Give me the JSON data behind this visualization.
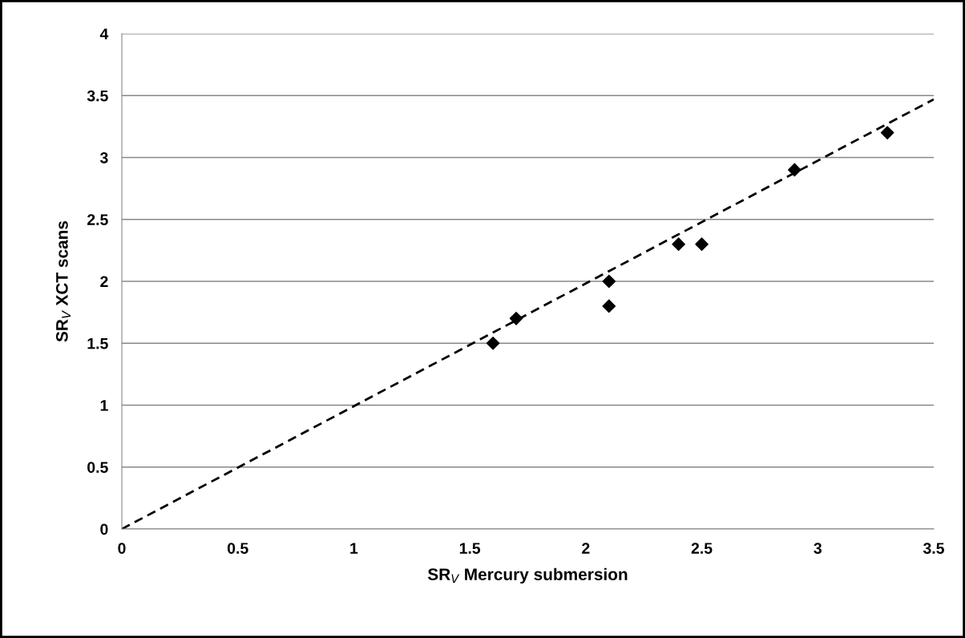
{
  "chart_data": {
    "type": "scatter",
    "xlabel": "SR$_{V}$ Mercury submersion",
    "ylabel": "SR$_{V}$ XCT scans",
    "x": [
      1.6,
      1.7,
      2.1,
      2.1,
      2.4,
      2.5,
      2.9,
      3.3
    ],
    "series": [
      {
        "color": "#000000",
        "marker": "diamond",
        "values": [
          1.5,
          1.7,
          2.0,
          1.8,
          2.3,
          2.3,
          2.9,
          3.2
        ]
      },
      {
        "type": "line",
        "color": "#000000",
        "line_style": "dashed",
        "marker": "none",
        "x": [
          0,
          3.5
        ],
        "values": [
          0,
          3.47
        ]
      }
    ],
    "xlim": [
      0,
      3.5
    ],
    "xticks": [
      0,
      0.5,
      1,
      1.5,
      2,
      2.5,
      3,
      3.5
    ],
    "ylim": [
      0,
      4
    ],
    "yticks": [
      0,
      0.5,
      1,
      1.5,
      2,
      2.5,
      3,
      3.5,
      4
    ],
    "grid": "y"
  }
}
